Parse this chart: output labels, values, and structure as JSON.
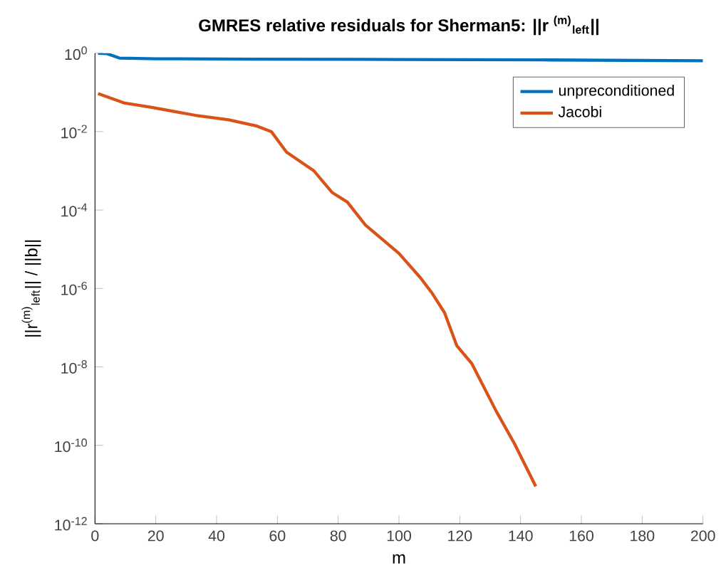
{
  "chart_data": {
    "type": "line",
    "title": "GMRES relative residuals for Sherman5: ||r $^{(m)}$$_{left}$||",
    "xlabel": "m",
    "ylabel": "||r$^{(m)}$$_{left}$|| / ||b||",
    "log": "y",
    "legend": "top right",
    "grid": false,
    "marker": "none",
    "line_style": "solid",
    "xlim": [
      0,
      200
    ],
    "xticks": [
      0,
      20,
      40,
      60,
      80,
      100,
      120,
      140,
      160,
      180,
      200
    ],
    "ylim": [
      1e-12,
      1
    ],
    "yticks": [
      {
        "value": 1e-12,
        "label": "10$^{-12}$"
      },
      {
        "value": 1e-10,
        "label": "10$^{-10}$"
      },
      {
        "value": 1e-08,
        "label": "10$^{-8}$"
      },
      {
        "value": 1e-06,
        "label": "10$^{-6}$"
      },
      {
        "value": 0.0001,
        "label": "10$^{-4}$"
      },
      {
        "value": 0.01,
        "label": "10$^{-2}$"
      },
      {
        "value": 1,
        "label": "10$^{0}$"
      }
    ],
    "series": [
      {
        "name": "unpreconditioned",
        "color": "#0072bd",
        "x": [
          1,
          4,
          8,
          20,
          50,
          100,
          150,
          200
        ],
        "values": [
          0.99,
          0.97,
          0.75,
          0.72,
          0.7,
          0.69,
          0.67,
          0.64
        ]
      },
      {
        "name": "Jacobi",
        "color": "#d95319",
        "x": [
          1,
          9.5,
          19,
          33,
          44,
          53,
          58,
          63,
          72,
          78,
          83,
          89,
          100,
          107,
          111,
          115,
          119,
          124,
          132,
          138,
          145
        ],
        "values": [
          0.093,
          0.054,
          0.041,
          0.026,
          0.02,
          0.014,
          0.01,
          0.003,
          0.001,
          0.00028,
          0.00016,
          4.1e-05,
          7.8e-06,
          1.9e-06,
          7.4e-07,
          2.4e-07,
          3.5e-08,
          1.2e-08,
          7.4e-10,
          1.1e-10,
          9e-12
        ]
      }
    ]
  }
}
